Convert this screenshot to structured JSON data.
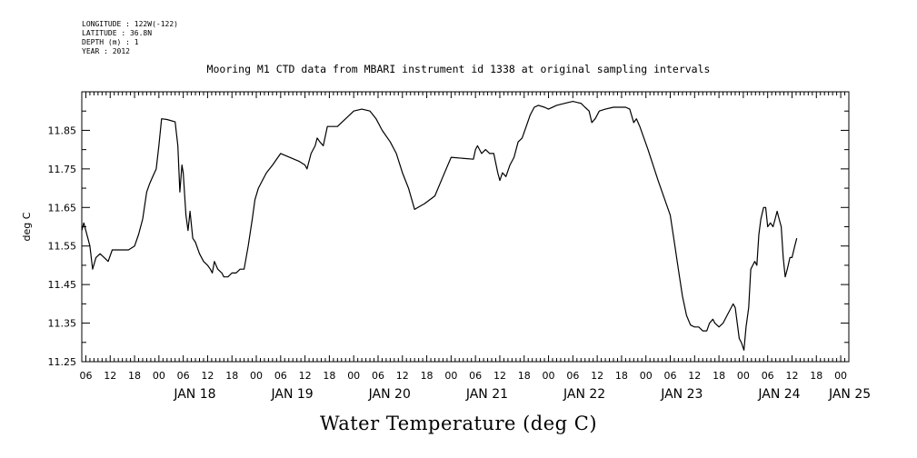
{
  "header": {
    "longitude": "LONGITUDE : 122W(-122)",
    "latitude": "LATITUDE : 36.8N",
    "depth": "DEPTH (m) : 1",
    "year": "YEAR : 2012"
  },
  "chart_data": {
    "type": "line",
    "title": "Mooring M1 CTD data from MBARI instrument id 1338 at original sampling intervals",
    "main_label": "Water Temperature (deg C)",
    "xlabel": "",
    "ylabel": "deg C",
    "ylim": [
      11.25,
      11.95
    ],
    "xlim": [
      "2012-01-17T05:00",
      "2012-01-25T02:00"
    ],
    "y_ticks": [
      "11.85",
      "11.75",
      "11.65",
      "11.55",
      "11.45",
      "11.35",
      "11.25"
    ],
    "hour_tick_labels": [
      "06",
      "12",
      "18",
      "00",
      "06",
      "12",
      "18",
      "00",
      "06",
      "12",
      "18",
      "00",
      "06",
      "12",
      "18",
      "00",
      "06",
      "12",
      "18",
      "00",
      "06",
      "12",
      "18",
      "00",
      "06",
      "12",
      "18",
      "00",
      "06",
      "12",
      "18",
      "00"
    ],
    "day_labels": [
      "JAN 18",
      "JAN 19",
      "JAN 20",
      "JAN 21",
      "JAN 22",
      "JAN 23",
      "JAN 24",
      "JAN 25"
    ],
    "grid": false,
    "series": [
      {
        "color": "#000000",
        "points": [
          [
            "2012-01-17T05:00",
            11.59
          ],
          [
            "2012-01-17T05:30",
            11.61
          ],
          [
            "2012-01-17T06:30",
            11.57
          ],
          [
            "2012-01-17T07:00",
            11.55
          ],
          [
            "2012-01-17T07:40",
            11.49
          ],
          [
            "2012-01-17T08:30",
            11.52
          ],
          [
            "2012-01-17T09:30",
            11.53
          ],
          [
            "2012-01-17T10:30",
            11.52
          ],
          [
            "2012-01-17T11:30",
            11.51
          ],
          [
            "2012-01-17T12:30",
            11.54
          ],
          [
            "2012-01-17T14:00",
            11.54
          ],
          [
            "2012-01-17T16:30",
            11.54
          ],
          [
            "2012-01-17T18:00",
            11.55
          ],
          [
            "2012-01-17T19:00",
            11.58
          ],
          [
            "2012-01-17T20:00",
            11.62
          ],
          [
            "2012-01-17T21:00",
            11.69
          ],
          [
            "2012-01-17T21:40",
            11.71
          ],
          [
            "2012-01-17T22:30",
            11.73
          ],
          [
            "2012-01-17T23:20",
            11.75
          ],
          [
            "2012-01-18T00:00",
            11.81
          ],
          [
            "2012-01-18T00:40",
            11.88
          ],
          [
            "2012-01-18T02:00",
            11.878
          ],
          [
            "2012-01-18T04:00",
            11.872
          ],
          [
            "2012-01-18T04:40",
            11.81
          ],
          [
            "2012-01-18T05:10",
            11.69
          ],
          [
            "2012-01-18T05:40",
            11.76
          ],
          [
            "2012-01-18T06:00",
            11.74
          ],
          [
            "2012-01-18T06:40",
            11.63
          ],
          [
            "2012-01-18T07:10",
            11.59
          ],
          [
            "2012-01-18T07:40",
            11.64
          ],
          [
            "2012-01-18T08:20",
            11.57
          ],
          [
            "2012-01-18T09:00",
            11.56
          ],
          [
            "2012-01-18T10:00",
            11.53
          ],
          [
            "2012-01-18T11:00",
            11.51
          ],
          [
            "2012-01-18T12:00",
            11.5
          ],
          [
            "2012-01-18T12:40",
            11.49
          ],
          [
            "2012-01-18T13:10",
            11.48
          ],
          [
            "2012-01-18T13:40",
            11.51
          ],
          [
            "2012-01-18T14:30",
            11.49
          ],
          [
            "2012-01-18T15:30",
            11.48
          ],
          [
            "2012-01-18T16:00",
            11.47
          ],
          [
            "2012-01-18T17:00",
            11.47
          ],
          [
            "2012-01-18T18:00",
            11.48
          ],
          [
            "2012-01-18T19:00",
            11.48
          ],
          [
            "2012-01-18T20:00",
            11.49
          ],
          [
            "2012-01-18T21:00",
            11.49
          ],
          [
            "2012-01-18T22:00",
            11.55
          ],
          [
            "2012-01-18T23:00",
            11.62
          ],
          [
            "2012-01-18T23:40",
            11.67
          ],
          [
            "2012-01-19T00:30",
            11.7
          ],
          [
            "2012-01-19T01:30",
            11.72
          ],
          [
            "2012-01-19T02:30",
            11.74
          ],
          [
            "2012-01-19T04:00",
            11.76
          ],
          [
            "2012-01-19T06:00",
            11.79
          ],
          [
            "2012-01-19T10:30",
            11.77
          ],
          [
            "2012-01-19T12:00",
            11.76
          ],
          [
            "2012-01-19T12:30",
            11.75
          ],
          [
            "2012-01-19T13:30",
            11.79
          ],
          [
            "2012-01-19T14:30",
            11.81
          ],
          [
            "2012-01-19T15:00",
            11.83
          ],
          [
            "2012-01-19T15:40",
            11.82
          ],
          [
            "2012-01-19T16:30",
            11.81
          ],
          [
            "2012-01-19T17:30",
            11.86
          ],
          [
            "2012-01-19T18:30",
            11.86
          ],
          [
            "2012-01-19T20:00",
            11.86
          ],
          [
            "2012-01-19T22:00",
            11.88
          ],
          [
            "2012-01-20T00:00",
            11.9
          ],
          [
            "2012-01-20T02:00",
            11.905
          ],
          [
            "2012-01-20T04:00",
            11.9
          ],
          [
            "2012-01-20T05:30",
            11.88
          ],
          [
            "2012-01-20T07:00",
            11.85
          ],
          [
            "2012-01-20T09:00",
            11.82
          ],
          [
            "2012-01-20T10:30",
            11.79
          ],
          [
            "2012-01-20T12:00",
            11.74
          ],
          [
            "2012-01-20T13:30",
            11.7
          ],
          [
            "2012-01-20T15:00",
            11.645
          ],
          [
            "2012-01-20T17:30",
            11.66
          ],
          [
            "2012-01-20T20:00",
            11.68
          ],
          [
            "2012-01-20T22:00",
            11.73
          ],
          [
            "2012-01-21T00:00",
            11.78
          ],
          [
            "2012-01-21T05:30",
            11.775
          ],
          [
            "2012-01-21T06:00",
            11.8
          ],
          [
            "2012-01-21T06:30",
            11.81
          ],
          [
            "2012-01-21T07:30",
            11.79
          ],
          [
            "2012-01-21T08:30",
            11.8
          ],
          [
            "2012-01-21T09:30",
            11.79
          ],
          [
            "2012-01-21T10:30",
            11.79
          ],
          [
            "2012-01-21T11:30",
            11.74
          ],
          [
            "2012-01-21T12:00",
            11.72
          ],
          [
            "2012-01-21T12:40",
            11.74
          ],
          [
            "2012-01-21T13:30",
            11.73
          ],
          [
            "2012-01-21T14:30",
            11.76
          ],
          [
            "2012-01-21T15:30",
            11.78
          ],
          [
            "2012-01-21T16:30",
            11.82
          ],
          [
            "2012-01-21T17:30",
            11.83
          ],
          [
            "2012-01-21T18:30",
            11.86
          ],
          [
            "2012-01-21T19:30",
            11.89
          ],
          [
            "2012-01-21T20:30",
            11.91
          ],
          [
            "2012-01-21T21:30",
            11.915
          ],
          [
            "2012-01-21T23:00",
            11.91
          ],
          [
            "2012-01-22T00:00",
            11.905
          ],
          [
            "2012-01-22T02:00",
            11.915
          ],
          [
            "2012-01-22T04:00",
            11.92
          ],
          [
            "2012-01-22T06:00",
            11.925
          ],
          [
            "2012-01-22T08:00",
            11.92
          ],
          [
            "2012-01-22T09:00",
            11.91
          ],
          [
            "2012-01-22T10:00",
            11.9
          ],
          [
            "2012-01-22T10:40",
            11.87
          ],
          [
            "2012-01-22T11:30",
            11.88
          ],
          [
            "2012-01-22T12:30",
            11.9
          ],
          [
            "2012-01-22T14:00",
            11.905
          ],
          [
            "2012-01-22T16:00",
            11.91
          ],
          [
            "2012-01-22T18:00",
            11.91
          ],
          [
            "2012-01-22T19:00",
            11.91
          ],
          [
            "2012-01-22T20:00",
            11.905
          ],
          [
            "2012-01-22T21:00",
            11.87
          ],
          [
            "2012-01-22T21:40",
            11.88
          ],
          [
            "2012-01-22T22:30",
            11.86
          ],
          [
            "2012-01-23T00:30",
            11.8
          ],
          [
            "2012-01-23T03:00",
            11.72
          ],
          [
            "2012-01-23T06:00",
            11.63
          ],
          [
            "2012-01-23T07:00",
            11.56
          ],
          [
            "2012-01-23T08:00",
            11.49
          ],
          [
            "2012-01-23T09:00",
            11.42
          ],
          [
            "2012-01-23T10:00",
            11.37
          ],
          [
            "2012-01-23T11:00",
            11.345
          ],
          [
            "2012-01-23T12:00",
            11.34
          ],
          [
            "2012-01-23T13:00",
            11.34
          ],
          [
            "2012-01-23T14:00",
            11.33
          ],
          [
            "2012-01-23T15:00",
            11.33
          ],
          [
            "2012-01-23T15:40",
            11.35
          ],
          [
            "2012-01-23T16:30",
            11.36
          ],
          [
            "2012-01-23T17:00",
            11.35
          ],
          [
            "2012-01-23T18:00",
            11.34
          ],
          [
            "2012-01-23T19:00",
            11.35
          ],
          [
            "2012-01-23T20:00",
            11.37
          ],
          [
            "2012-01-23T21:00",
            11.39
          ],
          [
            "2012-01-23T21:30",
            11.4
          ],
          [
            "2012-01-23T22:00",
            11.39
          ],
          [
            "2012-01-23T23:00",
            11.31
          ],
          [
            "2012-01-23T23:30",
            11.3
          ],
          [
            "2012-01-24T00:10",
            11.28
          ],
          [
            "2012-01-24T00:40",
            11.34
          ],
          [
            "2012-01-24T01:20",
            11.39
          ],
          [
            "2012-01-24T01:50",
            11.49
          ],
          [
            "2012-01-24T02:20",
            11.5
          ],
          [
            "2012-01-24T02:50",
            11.51
          ],
          [
            "2012-01-24T03:20",
            11.5
          ],
          [
            "2012-01-24T03:50",
            11.58
          ],
          [
            "2012-01-24T04:20",
            11.62
          ],
          [
            "2012-01-24T05:00",
            11.65
          ],
          [
            "2012-01-24T05:30",
            11.65
          ],
          [
            "2012-01-24T06:00",
            11.6
          ],
          [
            "2012-01-24T06:40",
            11.61
          ],
          [
            "2012-01-24T07:20",
            11.6
          ],
          [
            "2012-01-24T07:50",
            11.62
          ],
          [
            "2012-01-24T08:20",
            11.64
          ],
          [
            "2012-01-24T08:50",
            11.62
          ],
          [
            "2012-01-24T09:20",
            11.6
          ],
          [
            "2012-01-24T09:50",
            11.52
          ],
          [
            "2012-01-24T10:20",
            11.47
          ],
          [
            "2012-01-24T10:50",
            11.49
          ],
          [
            "2012-01-24T11:30",
            11.52
          ],
          [
            "2012-01-24T12:00",
            11.52
          ],
          [
            "2012-01-24T12:40",
            11.55
          ],
          [
            "2012-01-24T13:10",
            11.57
          ]
        ]
      }
    ]
  }
}
